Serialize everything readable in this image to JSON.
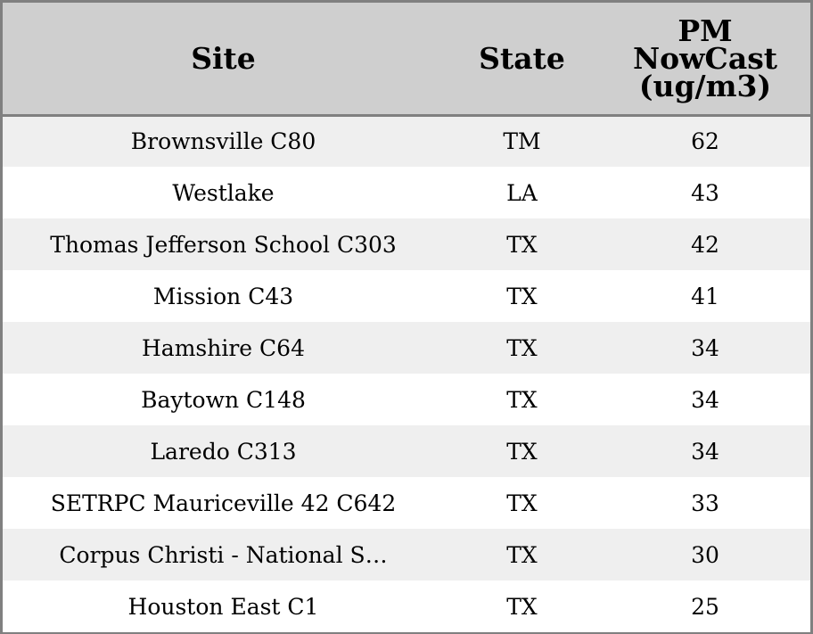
{
  "chart_data": {
    "type": "table",
    "columns": [
      "Site",
      "State",
      "PM NowCast (ug/m3)"
    ],
    "header_lines": {
      "site": [
        "Site"
      ],
      "state": [
        "State"
      ],
      "pm": [
        "PM",
        "NowCast",
        "(ug/m3)"
      ]
    },
    "rows": [
      {
        "site": "Brownsville C80",
        "state": "TM",
        "pm": "62"
      },
      {
        "site": "Westlake",
        "state": "LA",
        "pm": "43"
      },
      {
        "site": "Thomas Jefferson School C303",
        "state": "TX",
        "pm": "42"
      },
      {
        "site": "Mission C43",
        "state": "TX",
        "pm": "41"
      },
      {
        "site": "Hamshire C64",
        "state": "TX",
        "pm": "34"
      },
      {
        "site": "Baytown C148",
        "state": "TX",
        "pm": "34"
      },
      {
        "site": "Laredo C313",
        "state": "TX",
        "pm": "34"
      },
      {
        "site": "SETRPC Mauriceville 42 C642",
        "state": "TX",
        "pm": "33"
      },
      {
        "site": "Corpus Christi - National S…",
        "state": "TX",
        "pm": "30"
      },
      {
        "site": "Houston East C1",
        "state": "TX",
        "pm": "25"
      }
    ]
  },
  "colors": {
    "header_background": "#cfcfcf",
    "row_stripe": "#efefef",
    "row_plain": "#ffffff",
    "border": "#808080"
  }
}
